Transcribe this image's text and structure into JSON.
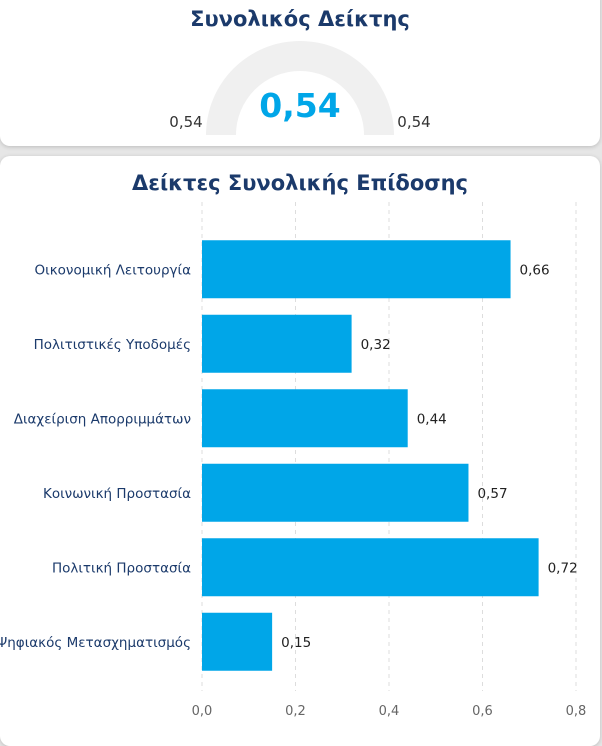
{
  "gauge": {
    "title": "Συνολικός Δείκτης",
    "value": 0.54,
    "value_label": "0,54",
    "min_label": "0,54",
    "max_label": "0,54",
    "colors": {
      "track": "#f0f0f0",
      "fill": "#00a6e8",
      "value_text": "#00a6e8",
      "side_text": "#333333"
    }
  },
  "chart_data": {
    "type": "bar",
    "orientation": "horizontal",
    "title": "Δείκτες Συνολικής Επίδοσης",
    "categories": [
      "Οικονομική Λειτουργία",
      "Πολιτιστικές Υποδομές",
      "Διαχείριση Απορριμμάτων",
      "Κοινωνική Προστασία",
      "Πολιτική Προστασία",
      "Ψηφιακός Μετασχηματισμός"
    ],
    "values": [
      0.66,
      0.32,
      0.44,
      0.57,
      0.72,
      0.15
    ],
    "data_labels": [
      "0,66",
      "0,32",
      "0,44",
      "0,57",
      "0,72",
      "0,15"
    ],
    "xlim": [
      0,
      0.8
    ],
    "x_ticks": [
      0,
      0.2,
      0.4,
      0.6,
      0.8
    ],
    "x_tick_labels": [
      "0,0",
      "0,2",
      "0,4",
      "0,6",
      "0,8"
    ],
    "grid": true,
    "colors": {
      "bar": "#00a6e8",
      "category_text": "#1b3a6b",
      "tick_text": "#666666",
      "grid": "#dddddd"
    }
  }
}
